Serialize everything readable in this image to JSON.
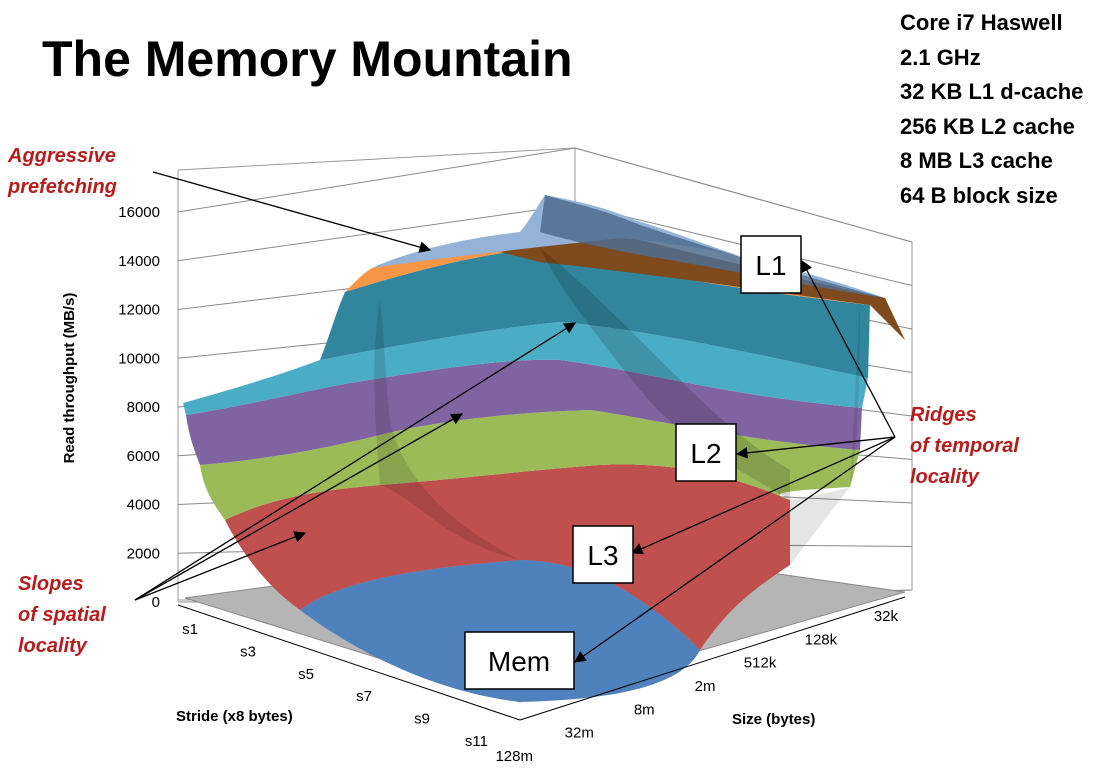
{
  "title": "The Memory Mountain",
  "specs": [
    "Core i7 Haswell",
    "2.1 GHz",
    "32 KB L1 d-cache",
    "256 KB L2 cache",
    "8 MB L3 cache",
    "64 B block size"
  ],
  "chart_data": {
    "type": "surface",
    "title": "The Memory Mountain",
    "zlabel": "Read throughput (MB/s)",
    "xlabel": "Stride (x8 bytes)",
    "ylabel": "Size (bytes)",
    "zlim": [
      0,
      16000
    ],
    "z_ticks": [
      "0",
      "2000",
      "4000",
      "6000",
      "8000",
      "10000",
      "12000",
      "14000",
      "16000"
    ],
    "stride_ticks": [
      "s1",
      "s3",
      "s5",
      "s7",
      "s9",
      "s11"
    ],
    "size_ticks": [
      "128m",
      "32m",
      "8m",
      "2m",
      "512k",
      "128k",
      "32k"
    ],
    "band_colors": [
      "#4f81bd",
      "#c0504d",
      "#9bbb59",
      "#8064a2",
      "#4bacc6",
      "#f79646",
      "#95b3d7"
    ],
    "approx_throughput_by_size": [
      {
        "size": "32k",
        "s1": 14000,
        "s11": 11000
      },
      {
        "size": "128k",
        "s1": 13500,
        "s11": 9000
      },
      {
        "size": "512k",
        "s1": 13000,
        "s11": 6500
      },
      {
        "size": "2m",
        "s1": 12000,
        "s11": 4500
      },
      {
        "size": "8m",
        "s1": 10500,
        "s11": 2500
      },
      {
        "size": "32m",
        "s1": 9000,
        "s11": 1000
      },
      {
        "size": "128m",
        "s1": 8000,
        "s11": 500
      }
    ],
    "annotations": {
      "aggressive": [
        "Aggressive",
        "prefetching"
      ],
      "slopes": [
        "Slopes",
        "of spatial",
        "locality"
      ],
      "ridges": [
        "Ridges",
        "of temporal",
        "locality"
      ],
      "boxes": [
        "L1",
        "L2",
        "L3",
        "Mem"
      ]
    }
  }
}
